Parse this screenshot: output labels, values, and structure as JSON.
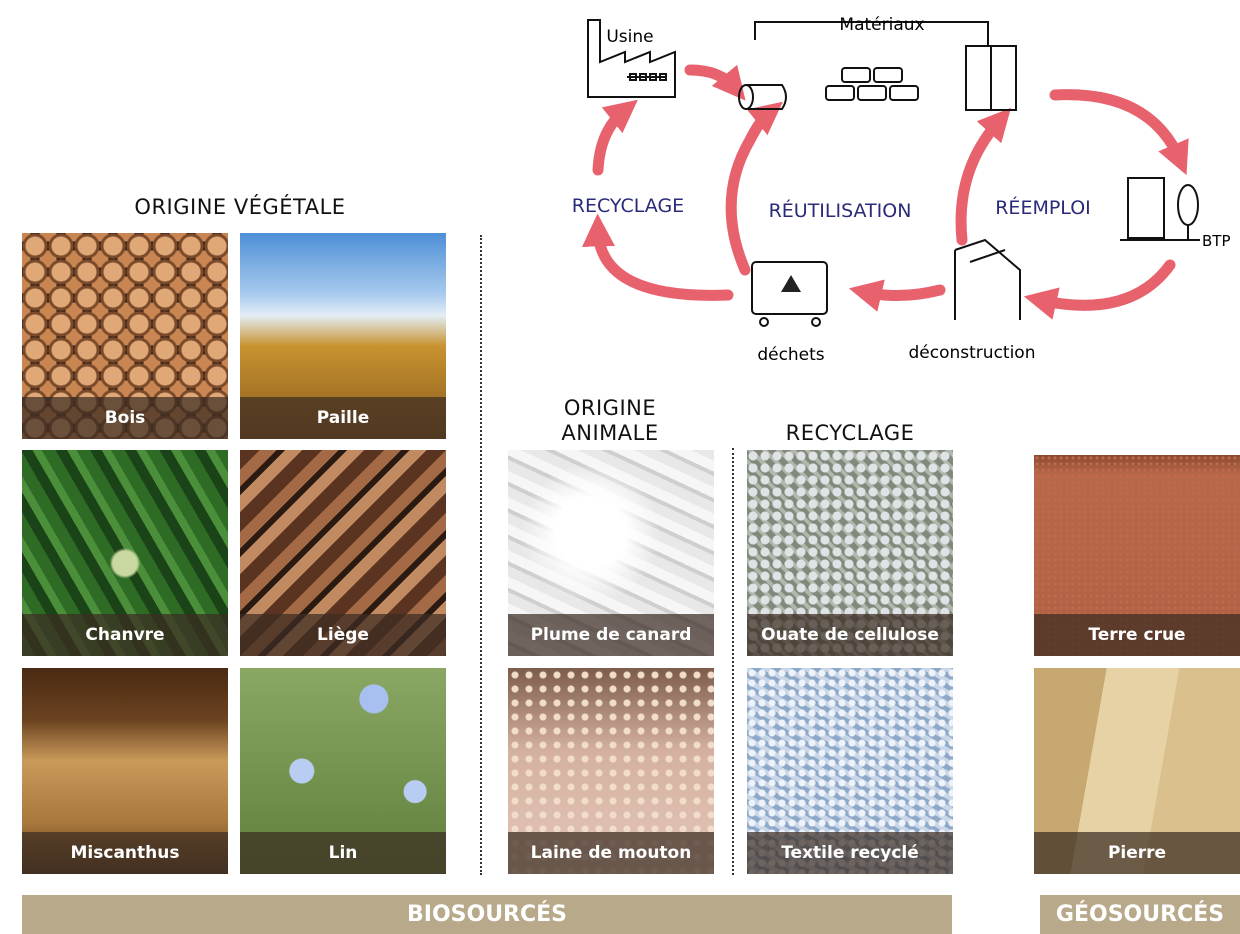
{
  "diagram": {
    "factory": "Usine",
    "materials": "Matériaux",
    "recycling": "RECYCLAGE",
    "reuse": "RÉUTILISATION",
    "reemploy": "RÉEMPLOI",
    "building": "BTP",
    "waste": "déchets",
    "deconstruction": "déconstruction"
  },
  "groups": [
    {
      "title": "ORIGINE VÉGÉTALE",
      "items": [
        "Bois",
        "Paille",
        "Chanvre",
        "Liège",
        "Miscanthus",
        "Lin"
      ]
    },
    {
      "title": "ORIGINE ANIMALE",
      "items": [
        "Plume de canard",
        "Laine de mouton"
      ]
    },
    {
      "title": "RECYCLAGE",
      "items": [
        "Ouate de cellulose",
        "Textile recyclé"
      ]
    },
    {
      "items": [
        "Terre crue",
        "Pierre"
      ]
    }
  ],
  "footer": [
    "BIOSOURCÉS",
    "GÉOSOURCÉS"
  ]
}
